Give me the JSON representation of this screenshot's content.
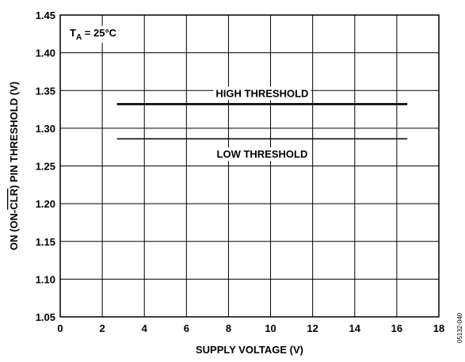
{
  "chart_data": {
    "type": "line",
    "xlabel": "SUPPLY VOLTAGE (V)",
    "ylabel_parts": {
      "pre": "ON (ON-",
      "overlined": "CLR",
      "post": ") PIN THRESHOLD (V)"
    },
    "xlim": [
      0,
      18
    ],
    "ylim": [
      1.05,
      1.45
    ],
    "xticks": [
      "0",
      "2",
      "4",
      "6",
      "8",
      "10",
      "12",
      "14",
      "16",
      "18"
    ],
    "yticks": [
      "1.05",
      "1.10",
      "1.15",
      "1.20",
      "1.25",
      "1.30",
      "1.35",
      "1.40",
      "1.45"
    ],
    "grid": true,
    "annotation": {
      "base": "T",
      "subscript": "A",
      "rest": " = 25°C"
    },
    "series": [
      {
        "name": "HIGH THRESHOLD",
        "x": [
          2.7,
          16.5
        ],
        "y": [
          1.332,
          1.332
        ],
        "line_weight": "heavy"
      },
      {
        "name": "LOW THRESHOLD",
        "x": [
          2.7,
          16.5
        ],
        "y": [
          1.286,
          1.286
        ],
        "line_weight": "light"
      }
    ]
  },
  "figure_id": "05132-040"
}
